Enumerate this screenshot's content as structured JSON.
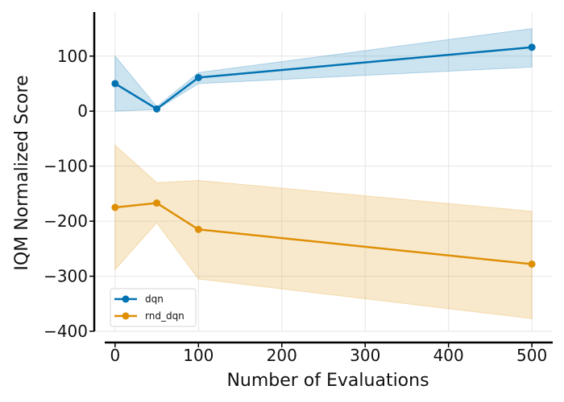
{
  "chart_data": {
    "type": "line",
    "title": "",
    "xlabel": "Number of Evaluations",
    "ylabel": "IQM Normalized Score",
    "xlim": [
      -25,
      525
    ],
    "ylim": [
      -400,
      180
    ],
    "xticks": [
      0,
      100,
      200,
      300,
      400,
      500
    ],
    "yticks": [
      100,
      0,
      -100,
      -200,
      -300,
      -400
    ],
    "xtick_labels": [
      "0",
      "100",
      "200",
      "300",
      "400",
      "500"
    ],
    "ytick_labels": [
      "100",
      "0",
      "−100",
      "−200",
      "−300",
      "−400"
    ],
    "grid": true,
    "legend_position": "lower-left",
    "x": [
      0,
      50,
      100,
      500
    ],
    "series": [
      {
        "name": "dqn",
        "color": "#0173b2",
        "values": [
          50,
          4,
          61,
          116
        ],
        "lower": [
          0,
          3,
          50,
          80
        ],
        "upper": [
          100,
          8,
          70,
          150
        ]
      },
      {
        "name": "rnd_dqn",
        "color": "#de8f05",
        "values": [
          -175,
          -167,
          -215,
          -278
        ],
        "lower": [
          -288,
          -203,
          -305,
          -377
        ],
        "upper": [
          -62,
          -130,
          -126,
          -182
        ]
      }
    ]
  }
}
